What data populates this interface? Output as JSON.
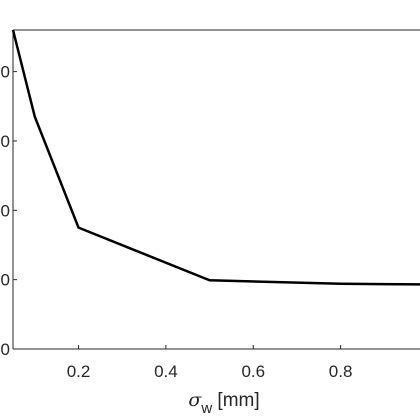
{
  "chart_data": {
    "type": "line",
    "title": "",
    "xlabel": "",
    "xlabel_symbol": "σ",
    "xlabel_subscript": "w",
    "xlabel_unit": " [mm]",
    "ylabel": "",
    "xlim": [
      0.05,
      1.0
    ],
    "ylim": [
      0,
      4.6
    ],
    "x_ticks": [
      0.2,
      0.4,
      0.6,
      0.8
    ],
    "x_tick_labels": [
      "0.2",
      "0.4",
      "0.6",
      "0.8"
    ],
    "y_ticks": [
      0,
      1,
      2,
      3,
      4
    ],
    "y_tick_labels_visible": false,
    "grid": false,
    "legend": "none",
    "series": [
      {
        "color": "#000000",
        "x": [
          0.05,
          0.1,
          0.2,
          0.5,
          0.8,
          1.0
        ],
        "y": [
          4.6,
          3.35,
          1.75,
          0.99,
          0.94,
          0.93
        ]
      }
    ]
  }
}
